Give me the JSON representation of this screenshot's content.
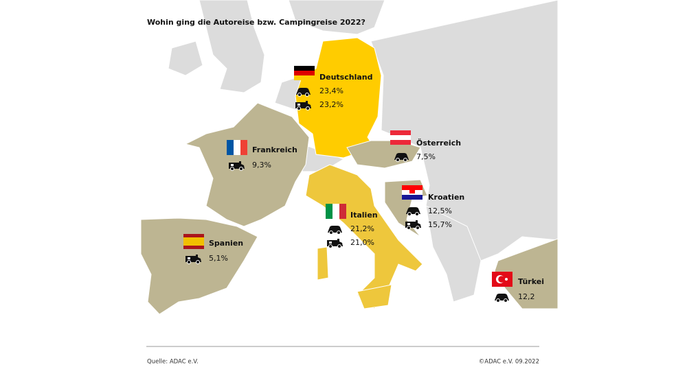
{
  "title": "Wohin ging die Autoreise bzw. Campingreise 2022?",
  "countries": [
    {
      "name": "Deutschland",
      "car": "23,4%",
      "camper": "23,2%"
    },
    {
      "name": "Frankreich",
      "camper": "9,3%"
    },
    {
      "name": "Österreich",
      "car": "7,5%"
    },
    {
      "name": "Kroatien",
      "car": "12,5%",
      "camper": "15,7%"
    },
    {
      "name": "Italien",
      "car": "21,2%",
      "camper": "21,0%"
    },
    {
      "name": "Spanien",
      "camper": "5,1%"
    },
    {
      "name": "Türkei",
      "car": "12,2"
    }
  ],
  "footer": {
    "source": "Quelle: ADAC e.V.",
    "copyright": "©ADAC e.V.  09.2022"
  }
}
